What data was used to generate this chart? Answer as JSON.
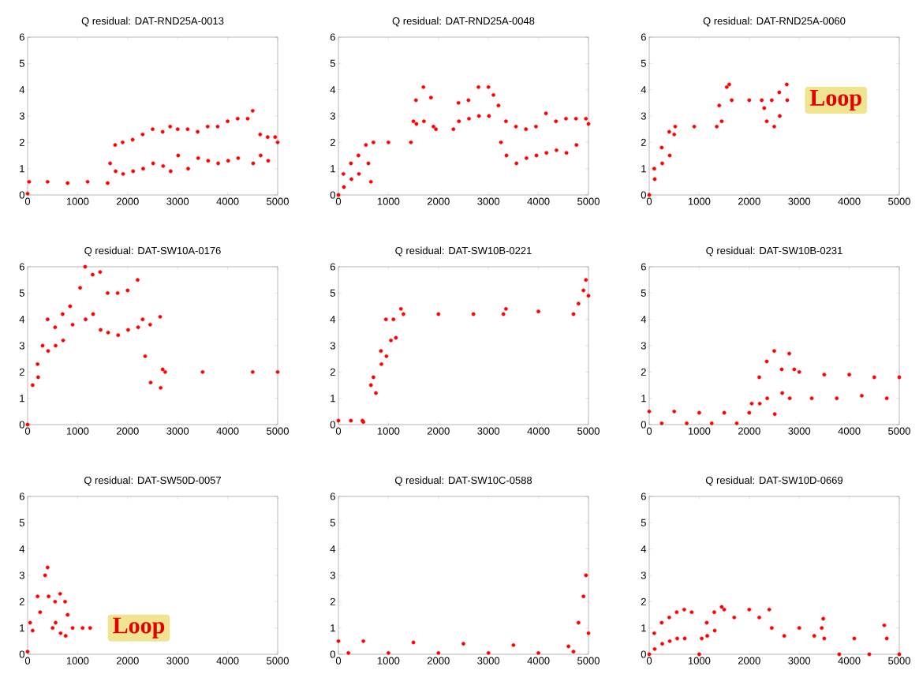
{
  "chart_data": [
    {
      "type": "scatter",
      "title": "Q residual: DAT-RND25A-0013",
      "color": "#ff0000",
      "marker": "circle",
      "xlim": [
        0,
        5000
      ],
      "ylim": [
        0,
        6
      ],
      "xticks": [
        0,
        1000,
        2000,
        3000,
        4000,
        5000
      ],
      "yticks": [
        0,
        1,
        2,
        3,
        4,
        5,
        6
      ],
      "x": [
        0,
        30,
        400,
        800,
        1200,
        1600,
        1650,
        1750,
        1760,
        1900,
        1910,
        2100,
        2110,
        2300,
        2310,
        2500,
        2510,
        2700,
        2710,
        2850,
        2860,
        3000,
        3010,
        3200,
        3210,
        3400,
        3410,
        3600,
        3610,
        3800,
        3810,
        4000,
        4010,
        4200,
        4210,
        4400,
        4500,
        4510,
        4650,
        4660,
        4800,
        4810,
        4950,
        5000
      ],
      "values": [
        0.05,
        0.5,
        0.5,
        0.45,
        0.5,
        0.45,
        1.2,
        1.9,
        0.9,
        2.0,
        0.8,
        2.1,
        0.9,
        2.3,
        1.0,
        2.5,
        1.2,
        2.4,
        1.1,
        2.6,
        0.9,
        2.5,
        1.5,
        2.5,
        1.0,
        2.4,
        1.4,
        2.6,
        1.3,
        2.6,
        1.2,
        2.8,
        1.3,
        2.9,
        1.4,
        2.9,
        3.2,
        1.2,
        2.3,
        1.5,
        2.2,
        1.3,
        2.2,
        2.0
      ]
    },
    {
      "type": "scatter",
      "title": "Q residual: DAT-RND25A-0048",
      "color": "#ff0000",
      "marker": "circle",
      "xlim": [
        0,
        5000
      ],
      "ylim": [
        0,
        6
      ],
      "xticks": [
        0,
        1000,
        2000,
        3000,
        4000,
        5000
      ],
      "yticks": [
        0,
        1,
        2,
        3,
        4,
        5,
        6
      ],
      "x": [
        0,
        100,
        110,
        250,
        260,
        400,
        410,
        550,
        600,
        650,
        700,
        1000,
        1450,
        1500,
        1550,
        1560,
        1700,
        1710,
        1850,
        1900,
        1950,
        2300,
        2400,
        2410,
        2600,
        2610,
        2800,
        2810,
        3000,
        3010,
        3100,
        3200,
        3250,
        3350,
        3360,
        3550,
        3560,
        3750,
        3760,
        3950,
        3960,
        4150,
        4160,
        4350,
        4360,
        4550,
        4560,
        4750,
        4760,
        4950,
        5000
      ],
      "values": [
        0,
        0.8,
        0.3,
        1.2,
        0.6,
        1.5,
        0.8,
        1.9,
        1.2,
        0.5,
        2.0,
        2.0,
        2.0,
        2.8,
        3.6,
        2.7,
        4.1,
        2.8,
        3.7,
        2.6,
        2.5,
        2.5,
        3.5,
        2.8,
        3.6,
        2.9,
        4.1,
        3.0,
        4.1,
        3.0,
        3.8,
        3.4,
        2.0,
        2.8,
        1.5,
        2.6,
        1.2,
        2.5,
        1.4,
        2.6,
        1.5,
        3.1,
        1.6,
        2.8,
        1.7,
        2.9,
        1.6,
        2.9,
        1.9,
        2.9,
        2.7
      ]
    },
    {
      "type": "scatter",
      "title": "Q residual: DAT-RND25A-0060",
      "color": "#ff0000",
      "marker": "circle",
      "xlim": [
        0,
        5000
      ],
      "ylim": [
        0,
        6
      ],
      "xticks": [
        0,
        1000,
        2000,
        3000,
        4000,
        5000
      ],
      "yticks": [
        0,
        1,
        2,
        3,
        4,
        5,
        6
      ],
      "annotations": [
        "Loop"
      ],
      "x": [
        0,
        100,
        110,
        250,
        260,
        400,
        410,
        500,
        520,
        900,
        1350,
        1400,
        1450,
        1550,
        1600,
        1650,
        2000,
        2250,
        2300,
        2350,
        2450,
        2500,
        2600,
        2610,
        2750,
        2760
      ],
      "values": [
        0,
        1.0,
        0.6,
        1.8,
        1.2,
        2.4,
        1.5,
        2.3,
        2.6,
        2.6,
        2.6,
        3.4,
        2.8,
        4.1,
        4.2,
        3.6,
        3.6,
        3.6,
        3.3,
        2.8,
        3.6,
        2.6,
        3.9,
        3.0,
        4.2,
        3.6
      ]
    },
    {
      "type": "scatter",
      "title": "Q residual: DAT-SW10A-0176",
      "color": "#ff0000",
      "marker": "circle",
      "xlim": [
        0,
        5000
      ],
      "ylim": [
        0,
        6
      ],
      "xticks": [
        0,
        1000,
        2000,
        3000,
        4000,
        5000
      ],
      "yticks": [
        0,
        1,
        2,
        3,
        4,
        5,
        6
      ],
      "x": [
        0,
        100,
        200,
        210,
        300,
        400,
        410,
        550,
        560,
        700,
        710,
        850,
        900,
        1050,
        1150,
        1160,
        1300,
        1310,
        1450,
        1460,
        1600,
        1610,
        1800,
        1810,
        2000,
        2010,
        2200,
        2210,
        2300,
        2350,
        2450,
        2460,
        2650,
        2660,
        2700,
        2750,
        3500,
        4500,
        5000
      ],
      "values": [
        0,
        1.5,
        2.3,
        1.8,
        3.0,
        4.0,
        2.8,
        3.7,
        3.0,
        4.2,
        3.2,
        4.5,
        3.8,
        5.2,
        6.0,
        4.0,
        5.7,
        4.2,
        5.8,
        3.6,
        5.0,
        3.5,
        5.0,
        3.4,
        5.1,
        3.6,
        5.5,
        3.7,
        4.0,
        2.6,
        3.8,
        1.6,
        4.1,
        1.4,
        2.1,
        2.0,
        2.0,
        2.0,
        2.0
      ]
    },
    {
      "type": "scatter",
      "title": "Q residual: DAT-SW10B-0221",
      "color": "#ff0000",
      "marker": "circle",
      "xlim": [
        0,
        5000
      ],
      "ylim": [
        0,
        6
      ],
      "xticks": [
        0,
        1000,
        2000,
        3000,
        4000,
        5000
      ],
      "yticks": [
        0,
        1,
        2,
        3,
        4,
        5,
        6
      ],
      "x": [
        0,
        250,
        480,
        500,
        650,
        700,
        750,
        850,
        860,
        950,
        960,
        1050,
        1100,
        1150,
        1250,
        1300,
        2000,
        2700,
        3300,
        3350,
        4000,
        4700,
        4800,
        4900,
        4950,
        5000
      ],
      "values": [
        0.15,
        0.15,
        0.15,
        0.1,
        1.5,
        1.8,
        1.2,
        2.8,
        2.3,
        4.0,
        2.6,
        3.2,
        4.0,
        3.3,
        4.4,
        4.2,
        4.2,
        4.2,
        4.2,
        4.4,
        4.3,
        4.2,
        4.6,
        5.1,
        5.5,
        4.9
      ]
    },
    {
      "type": "scatter",
      "title": "Q residual: DAT-SW10B-0231",
      "color": "#ff0000",
      "marker": "circle",
      "xlim": [
        0,
        5000
      ],
      "ylim": [
        0,
        6
      ],
      "xticks": [
        0,
        1000,
        2000,
        3000,
        4000,
        5000
      ],
      "yticks": [
        0,
        1,
        2,
        3,
        4,
        5,
        6
      ],
      "x": [
        0,
        250,
        500,
        750,
        1000,
        1250,
        1500,
        1750,
        2000,
        2050,
        2200,
        2210,
        2350,
        2360,
        2500,
        2510,
        2650,
        2660,
        2800,
        2810,
        2900,
        3000,
        3250,
        3500,
        3750,
        4000,
        4250,
        4500,
        4750,
        5000
      ],
      "values": [
        0.5,
        0.05,
        0.5,
        0.05,
        0.45,
        0.05,
        0.45,
        0.05,
        0.45,
        0.8,
        1.8,
        0.8,
        2.4,
        1.0,
        2.8,
        0.4,
        2.1,
        1.2,
        2.7,
        1.0,
        2.1,
        2.0,
        1.0,
        1.9,
        1.0,
        1.9,
        1.1,
        1.8,
        1.0,
        1.8
      ]
    },
    {
      "type": "scatter",
      "title": "Q residual: DAT-SW50D-0057",
      "color": "#ff0000",
      "marker": "circle",
      "xlim": [
        0,
        5000
      ],
      "ylim": [
        0,
        6
      ],
      "xticks": [
        0,
        1000,
        2000,
        3000,
        4000,
        5000
      ],
      "yticks": [
        0,
        1,
        2,
        3,
        4,
        5,
        6
      ],
      "annotations": [
        "Loop"
      ],
      "x": [
        0,
        50,
        100,
        200,
        250,
        350,
        400,
        420,
        500,
        550,
        560,
        650,
        660,
        750,
        760,
        800,
        900,
        1100,
        1250
      ],
      "values": [
        0.1,
        1.2,
        0.9,
        2.2,
        1.6,
        3.0,
        3.3,
        2.2,
        1.0,
        2.0,
        1.2,
        2.3,
        0.8,
        2.0,
        0.7,
        1.5,
        1.0,
        1.0,
        1.0
      ]
    },
    {
      "type": "scatter",
      "title": "Q residual: DAT-SW10C-0588",
      "color": "#ff0000",
      "marker": "circle",
      "xlim": [
        0,
        5000
      ],
      "ylim": [
        0,
        6
      ],
      "xticks": [
        0,
        1000,
        2000,
        3000,
        4000,
        5000
      ],
      "yticks": [
        0,
        1,
        2,
        3,
        4,
        5,
        6
      ],
      "x": [
        0,
        200,
        500,
        1000,
        1500,
        2000,
        2500,
        3000,
        3500,
        4000,
        4600,
        4700,
        4800,
        4900,
        4950,
        5000
      ],
      "values": [
        0.5,
        0.05,
        0.5,
        0.05,
        0.45,
        0.05,
        0.4,
        0.05,
        0.35,
        0.05,
        0.3,
        0.1,
        1.2,
        2.2,
        3.0,
        0.8
      ]
    },
    {
      "type": "scatter",
      "title": "Q residual: DAT-SW10D-0669",
      "color": "#ff0000",
      "marker": "circle",
      "xlim": [
        0,
        5000
      ],
      "ylim": [
        0,
        6
      ],
      "xticks": [
        0,
        1000,
        2000,
        3000,
        4000,
        5000
      ],
      "yticks": [
        0,
        1,
        2,
        3,
        4,
        5,
        6
      ],
      "x": [
        0,
        100,
        110,
        250,
        260,
        400,
        410,
        550,
        560,
        700,
        710,
        850,
        1000,
        1050,
        1150,
        1160,
        1300,
        1310,
        1450,
        1500,
        1700,
        2000,
        2200,
        2400,
        2450,
        2700,
        3000,
        3300,
        3450,
        3480,
        3500,
        3800,
        4100,
        4400,
        4700,
        4750,
        5000
      ],
      "values": [
        0,
        0.8,
        0.2,
        1.2,
        0.4,
        1.4,
        0.5,
        1.6,
        0.6,
        1.7,
        0.6,
        1.6,
        0.0,
        0.6,
        1.2,
        0.7,
        1.6,
        0.9,
        1.8,
        1.7,
        1.4,
        1.7,
        1.4,
        1.7,
        1.0,
        0.7,
        1.0,
        0.7,
        1.0,
        1.35,
        0.6,
        0.0,
        0.6,
        0.0,
        1.1,
        0.6,
        0.0
      ]
    }
  ]
}
